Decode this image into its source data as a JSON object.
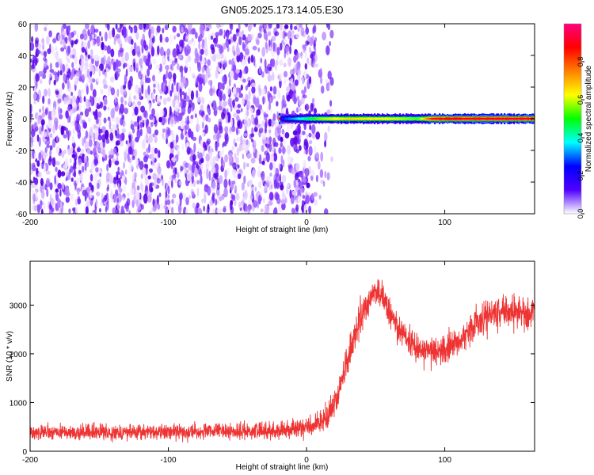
{
  "title": "GN05.2025.173.14.05.E30",
  "chart_data": [
    {
      "type": "heatmap",
      "xlabel": "Height of straight line (km)",
      "ylabel": "Frequency (Hz)",
      "xlim": [
        -200,
        165
      ],
      "ylim": [
        -60,
        60
      ],
      "xticks": [
        -200,
        -100,
        0,
        100
      ],
      "yticks": [
        -60,
        -40,
        -20,
        0,
        20,
        40,
        60
      ],
      "xtick_labels": [
        "-200",
        "-100",
        "0",
        "100"
      ],
      "ytick_labels": [
        "-60",
        "-40",
        "-20",
        "0",
        "20",
        "40",
        "60"
      ],
      "noise_region_km": [
        -200,
        7
      ],
      "signal_band": {
        "start_km": -20,
        "end_km": 165,
        "center_hz": 0,
        "amplitude_profile": [
          {
            "x": -20,
            "amp": 0.2
          },
          {
            "x": -5,
            "amp": 0.35
          },
          {
            "x": 10,
            "amp": 0.55
          },
          {
            "x": 30,
            "amp": 0.65
          },
          {
            "x": 60,
            "amp": 0.6
          },
          {
            "x": 80,
            "amp": 0.5
          },
          {
            "x": 90,
            "amp": 0.85
          },
          {
            "x": 120,
            "amp": 0.9
          },
          {
            "x": 165,
            "amp": 0.9
          }
        ]
      },
      "colorbar": {
        "label": "Normalized spectral amplitude",
        "range": [
          0.0,
          1.0
        ],
        "ticks": [
          0.0,
          0.2,
          0.4,
          0.6,
          0.8
        ],
        "tick_labels": [
          "0.0",
          "0.2",
          "0.4",
          "0.6",
          "0.8"
        ],
        "colormap": [
          "#ffffff",
          "#5000ff",
          "#0000ff",
          "#00ffff",
          "#00ff00",
          "#ffff00",
          "#ff8000",
          "#ff0000",
          "#ff0080"
        ]
      }
    },
    {
      "type": "line",
      "xlabel": "Height of straight line (km)",
      "ylabel": "SNR (10 * v/v)",
      "xlim": [
        -200,
        165
      ],
      "ylim": [
        0,
        3900
      ],
      "xticks": [
        -200,
        -100,
        0,
        100
      ],
      "yticks": [
        0,
        1000,
        2000,
        3000
      ],
      "xtick_labels": [
        "-200",
        "-100",
        "0",
        "100"
      ],
      "ytick_labels": [
        "0",
        "1000",
        "2000",
        "3000"
      ],
      "color": "#ee3333",
      "series": [
        {
          "x": [
            -200,
            -150,
            -100,
            -50,
            -20,
            5,
            15,
            22,
            30,
            40,
            48,
            55,
            65,
            75,
            85,
            95,
            105,
            115,
            125,
            135,
            145,
            155,
            165
          ],
          "mean": [
            380,
            390,
            400,
            410,
            430,
            520,
            700,
            1100,
            1900,
            2800,
            3250,
            3150,
            2600,
            2250,
            2050,
            2050,
            2150,
            2400,
            2700,
            2850,
            2900,
            2850,
            2850
          ],
          "spread": [
            300,
            300,
            300,
            320,
            330,
            380,
            450,
            550,
            650,
            650,
            600,
            600,
            550,
            550,
            550,
            550,
            550,
            600,
            650,
            700,
            700,
            700,
            700
          ]
        }
      ]
    }
  ]
}
